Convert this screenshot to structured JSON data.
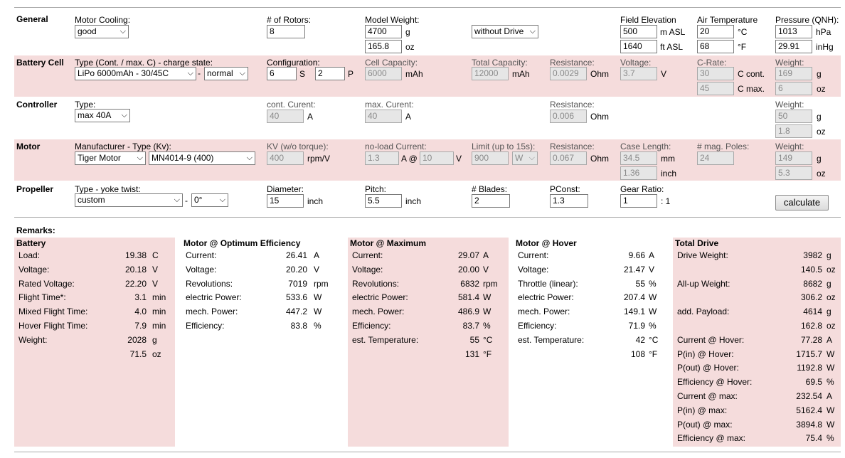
{
  "sections": {
    "general": "General",
    "battery": "Battery Cell",
    "controller": "Controller",
    "motor": "Motor",
    "propeller": "Propeller"
  },
  "general": {
    "cooling_label": "Motor Cooling:",
    "cooling_value": "good",
    "rotors_label": "# of Rotors:",
    "rotors_value": "8",
    "weight_label": "Model Weight:",
    "weight_g": "4700",
    "weight_g_unit": "g",
    "weight_oz": "165.8",
    "weight_oz_unit": "oz",
    "drive_mode": "without Drive",
    "elev_label": "Field Elevation",
    "elev_m": "500",
    "elev_m_unit": "m ASL",
    "elev_ft": "1640",
    "elev_ft_unit": "ft ASL",
    "air_label": "Air Temperature",
    "air_c": "20",
    "air_c_unit": "°C",
    "air_f": "68",
    "air_f_unit": "°F",
    "press_label": "Pressure (QNH):",
    "press_hpa": "1013",
    "press_hpa_unit": "hPa",
    "press_inhg": "29.91",
    "press_inhg_unit": "inHg"
  },
  "battery": {
    "type_label": "Type (Cont. / max. C) - charge state:",
    "type_value": "LiPo 6000mAh - 30/45C",
    "dash": "-",
    "state_value": "normal",
    "config_label": "Configuration:",
    "config_s": "6",
    "s_unit": "S",
    "config_p": "2",
    "p_unit": "P",
    "cellcap_label": "Cell Capacity:",
    "cellcap_value": "6000",
    "cellcap_unit": "mAh",
    "totcap_label": "Total Capacity:",
    "totcap_value": "12000",
    "totcap_unit": "mAh",
    "res_label": "Resistance:",
    "res_value": "0.0029",
    "res_unit": "Ohm",
    "volt_label": "Voltage:",
    "volt_value": "3.7",
    "volt_unit": "V",
    "crate_label": "C-Rate:",
    "crate_cont": "30",
    "crate_cont_unit": "C cont.",
    "crate_max": "45",
    "crate_max_unit": "C max.",
    "weight_label": "Weight:",
    "weight_g": "169",
    "weight_g_unit": "g",
    "weight_oz": "6",
    "weight_oz_unit": "oz"
  },
  "controller": {
    "type_label": "Type:",
    "type_value": "max 40A",
    "cont_label": "cont. Curent:",
    "cont_value": "40",
    "cont_unit": "A",
    "max_label": "max. Curent:",
    "max_value": "40",
    "max_unit": "A",
    "res_label": "Resistance:",
    "res_value": "0.006",
    "res_unit": "Ohm",
    "weight_label": "Weight:",
    "weight_g": "50",
    "weight_g_unit": "g",
    "weight_oz": "1.8",
    "weight_oz_unit": "oz"
  },
  "motor": {
    "mfr_label": "Manufacturer - Type (Kv):",
    "mfr_value": "Tiger Motor",
    "type_value": "MN4014-9 (400)",
    "kv_label": "KV (w/o torque):",
    "kv_value": "400",
    "kv_unit": "rpm/V",
    "noload_label": "no-load Current:",
    "noload_value": "1.3",
    "noload_at": "A @",
    "noload_v": "10",
    "noload_v_unit": "V",
    "limit_label": "Limit (up to 15s):",
    "limit_value": "900",
    "limit_unit": "W",
    "res_label": "Resistance:",
    "res_value": "0.067",
    "res_unit": "Ohm",
    "case_label": "Case Length:",
    "case_mm": "34.5",
    "case_mm_unit": "mm",
    "case_in": "1.36",
    "case_in_unit": "inch",
    "poles_label": "# mag. Poles:",
    "poles_value": "24",
    "weight_label": "Weight:",
    "weight_g": "149",
    "weight_g_unit": "g",
    "weight_oz": "5.3",
    "weight_oz_unit": "oz"
  },
  "propeller": {
    "type_label": "Type - yoke twist:",
    "type_value": "custom",
    "dash": "-",
    "twist_value": "0°",
    "diam_label": "Diameter:",
    "diam_value": "15",
    "diam_unit": "inch",
    "pitch_label": "Pitch:",
    "pitch_value": "5.5",
    "pitch_unit": "inch",
    "blades_label": "# Blades:",
    "blades_value": "2",
    "pconst_label": "PConst:",
    "pconst_value": "1.3",
    "gear_label": "Gear Ratio:",
    "gear_value": "1",
    "gear_unit": ": 1",
    "calculate_label": "calculate"
  },
  "remarks_label": "Remarks:",
  "results": {
    "battery": {
      "title": "Battery",
      "rows": [
        {
          "label": "Load:",
          "value": "19.38",
          "unit": "C"
        },
        {
          "label": "Voltage:",
          "value": "20.18",
          "unit": "V"
        },
        {
          "label": "Rated Voltage:",
          "value": "22.20",
          "unit": "V"
        },
        {
          "label": "Flight Time*:",
          "value": "3.1",
          "unit": "min"
        },
        {
          "label": "Mixed Flight Time:",
          "value": "4.0",
          "unit": "min"
        },
        {
          "label": "Hover Flight Time:",
          "value": "7.9",
          "unit": "min"
        },
        {
          "label": "Weight:",
          "value": "2028",
          "unit": "g"
        },
        {
          "label": "",
          "value": "71.5",
          "unit": "oz"
        }
      ]
    },
    "optimum": {
      "title": "Motor @ Optimum Efficiency",
      "rows": [
        {
          "label": "Current:",
          "value": "26.41",
          "unit": "A"
        },
        {
          "label": "Voltage:",
          "value": "20.20",
          "unit": "V"
        },
        {
          "label": "Revolutions:",
          "value": "7019",
          "unit": "rpm"
        },
        {
          "label": "electric Power:",
          "value": "533.6",
          "unit": "W"
        },
        {
          "label": "mech. Power:",
          "value": "447.2",
          "unit": "W"
        },
        {
          "label": "Efficiency:",
          "value": "83.8",
          "unit": "%"
        }
      ]
    },
    "maximum": {
      "title": "Motor @ Maximum",
      "rows": [
        {
          "label": "Current:",
          "value": "29.07",
          "unit": "A"
        },
        {
          "label": "Voltage:",
          "value": "20.00",
          "unit": "V"
        },
        {
          "label": "Revolutions:",
          "value": "6832",
          "unit": "rpm"
        },
        {
          "label": "electric Power:",
          "value": "581.4",
          "unit": "W"
        },
        {
          "label": "mech. Power:",
          "value": "486.9",
          "unit": "W"
        },
        {
          "label": "Efficiency:",
          "value": "83.7",
          "unit": "%"
        },
        {
          "label": "est. Temperature:",
          "value": "55",
          "unit": "°C"
        },
        {
          "label": "",
          "value": "131",
          "unit": "°F"
        }
      ]
    },
    "hover": {
      "title": "Motor @ Hover",
      "rows": [
        {
          "label": "Current:",
          "value": "9.66",
          "unit": "A"
        },
        {
          "label": "Voltage:",
          "value": "21.47",
          "unit": "V"
        },
        {
          "label": "Throttle (linear):",
          "value": "55",
          "unit": "%"
        },
        {
          "label": "electric Power:",
          "value": "207.4",
          "unit": "W"
        },
        {
          "label": "mech. Power:",
          "value": "149.1",
          "unit": "W"
        },
        {
          "label": "Efficiency:",
          "value": "71.9",
          "unit": "%"
        },
        {
          "label": "est. Temperature:",
          "value": "42",
          "unit": "°C"
        },
        {
          "label": "",
          "value": "108",
          "unit": "°F"
        }
      ]
    },
    "total": {
      "title": "Total Drive",
      "rows": [
        {
          "label": "Drive Weight:",
          "value": "3982",
          "unit": "g"
        },
        {
          "label": "",
          "value": "140.5",
          "unit": "oz"
        },
        {
          "label": "All-up Weight:",
          "value": "8682",
          "unit": "g"
        },
        {
          "label": "",
          "value": "306.2",
          "unit": "oz"
        },
        {
          "label": "add. Payload:",
          "value": "4614",
          "unit": "g"
        },
        {
          "label": "",
          "value": "162.8",
          "unit": "oz"
        },
        {
          "label": "Current @ Hover:",
          "value": "77.28",
          "unit": "A"
        },
        {
          "label": "P(in) @ Hover:",
          "value": "1715.7",
          "unit": "W"
        },
        {
          "label": "P(out) @ Hover:",
          "value": "1192.8",
          "unit": "W"
        },
        {
          "label": "Efficiency @ Hover:",
          "value": "69.5",
          "unit": "%"
        },
        {
          "label": "Current @ max:",
          "value": "232.54",
          "unit": "A"
        },
        {
          "label": "P(in) @ max:",
          "value": "5162.4",
          "unit": "W"
        },
        {
          "label": "P(out) @ max:",
          "value": "3894.8",
          "unit": "W"
        },
        {
          "label": "Efficiency @ max:",
          "value": "75.4",
          "unit": "%"
        }
      ]
    }
  }
}
